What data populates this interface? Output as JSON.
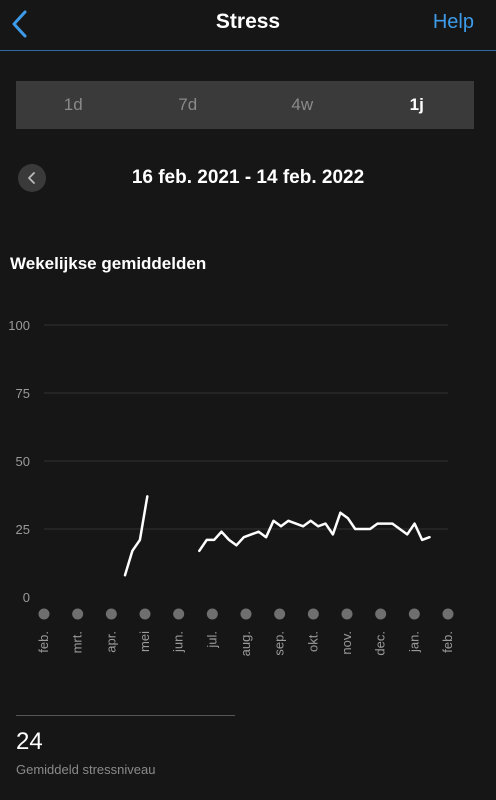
{
  "nav": {
    "title": "Stress",
    "help_label": "Help"
  },
  "segments": [
    {
      "label": "1d",
      "active": false
    },
    {
      "label": "7d",
      "active": false
    },
    {
      "label": "4w",
      "active": false
    },
    {
      "label": "1j",
      "active": true
    }
  ],
  "date_range": "16 feb. 2021 - 14 feb. 2022",
  "section_title": "Wekelijkse gemiddelden",
  "chart_data": {
    "type": "line",
    "title": "Wekelijkse gemiddelden",
    "xlabel": "",
    "ylabel": "",
    "ylim": [
      0,
      100
    ],
    "y_ticks": [
      0,
      25,
      50,
      75,
      100
    ],
    "x_tick_labels": [
      "feb.",
      "mrt.",
      "apr.",
      "mei",
      "jun.",
      "jul.",
      "aug.",
      "sep.",
      "okt.",
      "nov.",
      "dec.",
      "jan.",
      "feb."
    ],
    "grid": true,
    "color": "#ffffff",
    "series": [
      {
        "values": [
          null,
          null,
          null,
          null,
          null,
          null,
          null,
          null,
          null,
          null,
          8,
          17,
          21,
          37,
          null,
          null,
          null,
          null,
          null,
          null,
          17,
          21,
          21,
          24,
          21,
          19,
          22,
          23,
          24,
          22,
          28,
          26,
          28,
          27,
          26,
          28,
          26,
          27,
          23,
          31,
          29,
          25,
          25,
          25,
          27,
          27,
          27,
          25,
          23,
          27,
          21,
          22
        ]
      }
    ]
  },
  "summary": {
    "value": "24",
    "label": "Gemiddeld stressniveau"
  }
}
